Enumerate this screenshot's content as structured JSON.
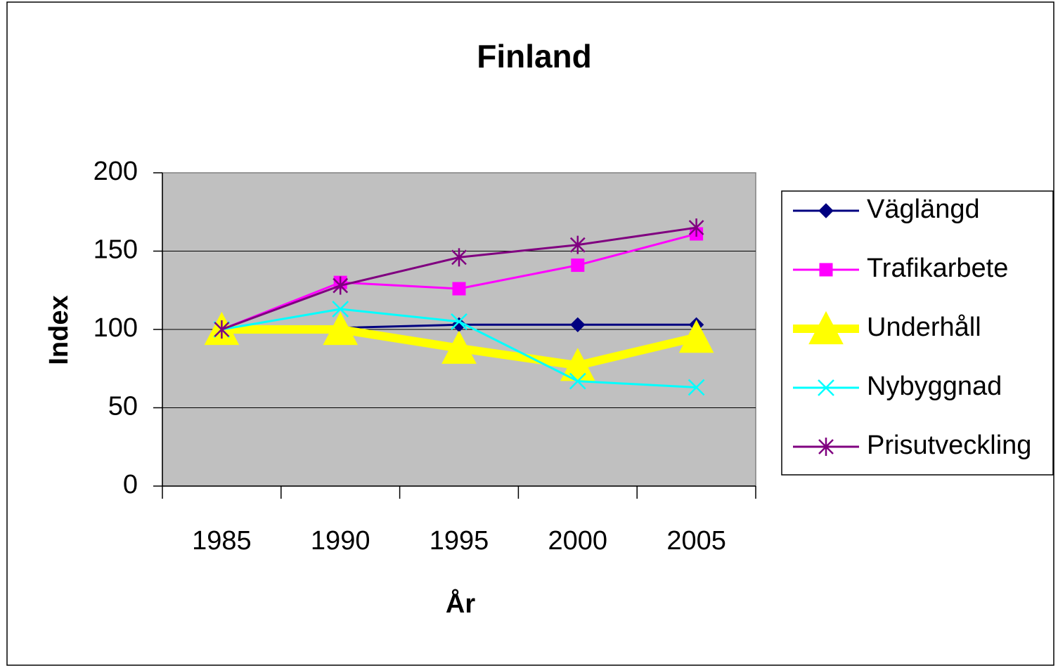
{
  "chart_data": {
    "type": "line",
    "title": "Finland",
    "x_label": "År",
    "y_label": "Index",
    "categories": [
      "1985",
      "1990",
      "1995",
      "2000",
      "2005"
    ],
    "series": [
      {
        "name": "Väglängd",
        "color": "#000080",
        "marker": "diamond",
        "values": [
          100,
          101,
          103,
          103,
          103
        ]
      },
      {
        "name": "Trafikarbete",
        "color": "#ff00ff",
        "marker": "square",
        "values": [
          100,
          130,
          126,
          141,
          161
        ]
      },
      {
        "name": "Underhåll",
        "color": "#ffff00",
        "marker": "triangle",
        "values": [
          100,
          100,
          88,
          77,
          95
        ]
      },
      {
        "name": "Nybyggnad",
        "color": "#00ffff",
        "marker": "x",
        "values": [
          100,
          113,
          105,
          67,
          63
        ]
      },
      {
        "name": "Prisutveckling",
        "color": "#800080",
        "marker": "star",
        "values": [
          100,
          128,
          146,
          154,
          165
        ]
      }
    ],
    "ylim": [
      0,
      200
    ],
    "yticks": [
      0,
      50,
      100,
      150,
      200
    ],
    "grid": true,
    "legend": "right"
  }
}
